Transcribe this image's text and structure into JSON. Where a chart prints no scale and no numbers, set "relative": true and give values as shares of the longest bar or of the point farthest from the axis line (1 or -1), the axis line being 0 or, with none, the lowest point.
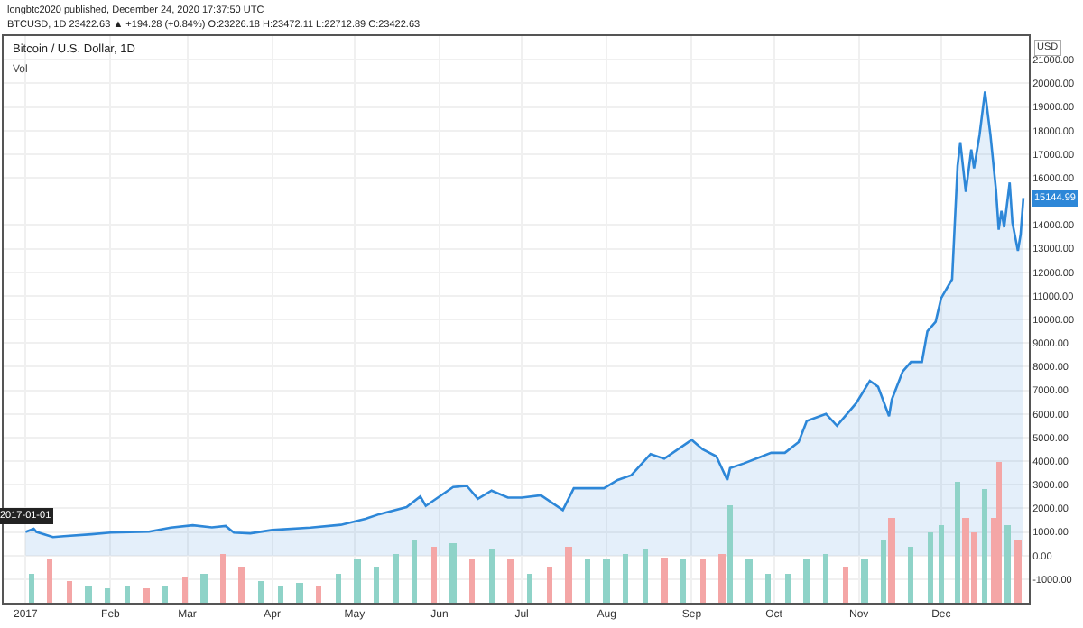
{
  "chart_data": [
    {
      "type": "area",
      "title": "Bitcoin / U.S. Dollar, 1D",
      "ylabel": "USD",
      "annotations": [
        "longbtc2020 published, December 24, 2020 17:37:50 UTC",
        "BTCUSD, 1D 23422.63 ▲ +194.28 (+0.84%) O:23226.18 H:23472.11 L:22712.89 C:23422.63",
        {
          "text": "15144.99",
          "x": "2017-12-31",
          "y": 15144.99
        },
        {
          "text": "2017-01-01",
          "x": "2017-01-01",
          "y": 1000
        }
      ],
      "series": [
        {
          "color": "#2d87d8",
          "x": [
            "2017-01-01",
            "2017-01-04",
            "2017-01-05",
            "2017-01-11",
            "2017-01-15",
            "2017-01-25",
            "2017-02-01",
            "2017-02-15",
            "2017-02-23",
            "2017-03-03",
            "2017-03-10",
            "2017-03-15",
            "2017-03-18",
            "2017-03-24",
            "2017-04-01",
            "2017-04-15",
            "2017-04-26",
            "2017-05-05",
            "2017-05-10",
            "2017-05-20",
            "2017-05-25",
            "2017-05-27",
            "2017-06-06",
            "2017-06-11",
            "2017-06-15",
            "2017-06-20",
            "2017-06-26",
            "2017-07-01",
            "2017-07-08",
            "2017-07-16",
            "2017-07-20",
            "2017-07-31",
            "2017-08-05",
            "2017-08-10",
            "2017-08-17",
            "2017-08-22",
            "2017-09-01",
            "2017-09-05",
            "2017-09-10",
            "2017-09-14",
            "2017-09-15",
            "2017-09-20",
            "2017-09-30",
            "2017-10-05",
            "2017-10-10",
            "2017-10-13",
            "2017-10-20",
            "2017-10-24",
            "2017-10-31",
            "2017-11-05",
            "2017-11-08",
            "2017-11-12",
            "2017-11-13",
            "2017-11-17",
            "2017-11-20",
            "2017-11-24",
            "2017-11-26",
            "2017-11-29",
            "2017-12-01",
            "2017-12-05",
            "2017-12-07",
            "2017-12-08",
            "2017-12-10",
            "2017-12-12",
            "2017-12-13",
            "2017-12-15",
            "2017-12-17",
            "2017-12-19",
            "2017-12-21",
            "2017-12-22",
            "2017-12-23",
            "2017-12-24",
            "2017-12-26",
            "2017-12-27",
            "2017-12-29",
            "2017-12-30",
            "2017-12-31"
          ],
          "values": [
            1000,
            1130,
            1000,
            780,
            820,
            900,
            970,
            1010,
            1180,
            1280,
            1190,
            1250,
            970,
            940,
            1080,
            1180,
            1300,
            1550,
            1750,
            2050,
            2500,
            2100,
            2900,
            2950,
            2400,
            2750,
            2450,
            2450,
            2550,
            1920,
            2850,
            2850,
            3200,
            3400,
            4300,
            4100,
            4900,
            4500,
            4200,
            3200,
            3700,
            3900,
            4350,
            4350,
            4800,
            5700,
            6000,
            5500,
            6450,
            7400,
            7150,
            5900,
            6600,
            7800,
            8200,
            8200,
            9500,
            9900,
            10900,
            11700,
            16500,
            17500,
            15400,
            17200,
            16400,
            17800,
            19650,
            17800,
            15500,
            13800,
            14600,
            13900,
            15800,
            14100,
            12900,
            13600,
            15144.99
          ]
        }
      ],
      "xlim": [
        "2016-12-24",
        "2018-01-02"
      ],
      "xticks": [
        {
          "value": "2017-01-01",
          "label": "2017"
        },
        {
          "value": "2017-02-01",
          "label": "Feb"
        },
        {
          "value": "2017-03-01",
          "label": "Mar"
        },
        {
          "value": "2017-04-01",
          "label": "Apr"
        },
        {
          "value": "2017-05-01",
          "label": "May"
        },
        {
          "value": "2017-06-01",
          "label": "Jun"
        },
        {
          "value": "2017-07-01",
          "label": "Jul"
        },
        {
          "value": "2017-08-01",
          "label": "Aug"
        },
        {
          "value": "2017-09-01",
          "label": "Sep"
        },
        {
          "value": "2017-10-01",
          "label": "Oct"
        },
        {
          "value": "2017-11-01",
          "label": "Nov"
        },
        {
          "value": "2017-12-01",
          "label": "Dec"
        }
      ],
      "ylim": [
        -2000,
        22000
      ],
      "yticks": [
        {
          "value": -1000,
          "label": "-1000.00"
        },
        {
          "value": 0,
          "label": "0.00"
        },
        {
          "value": 1000,
          "label": "1000.00"
        },
        {
          "value": 2000,
          "label": "2000.00"
        },
        {
          "value": 3000,
          "label": "3000.00"
        },
        {
          "value": 4000,
          "label": "4000.00"
        },
        {
          "value": 5000,
          "label": "5000.00"
        },
        {
          "value": 6000,
          "label": "6000.00"
        },
        {
          "value": 7000,
          "label": "7000.00"
        },
        {
          "value": 8000,
          "label": "8000.00"
        },
        {
          "value": 9000,
          "label": "9000.00"
        },
        {
          "value": 10000,
          "label": "10000.00"
        },
        {
          "value": 11000,
          "label": "11000.00"
        },
        {
          "value": 12000,
          "label": "12000.00"
        },
        {
          "value": 13000,
          "label": "13000.00"
        },
        {
          "value": 14000,
          "label": "14000.00"
        },
        {
          "value": 16000,
          "label": "16000.00"
        },
        {
          "value": 17000,
          "label": "17000.00"
        },
        {
          "value": 18000,
          "label": "18000.00"
        },
        {
          "value": 19000,
          "label": "19000.00"
        },
        {
          "value": 20000,
          "label": "20000.00"
        },
        {
          "value": 21000,
          "label": "21000.00"
        }
      ],
      "grid": true,
      "marker": "none",
      "line_style": "solid"
    },
    {
      "type": "bar",
      "title": "Vol",
      "relative": true,
      "x": [
        "2017-01-03",
        "2017-01-10",
        "2017-01-17",
        "2017-01-24",
        "2017-01-31",
        "2017-02-07",
        "2017-02-14",
        "2017-02-21",
        "2017-02-28",
        "2017-03-07",
        "2017-03-14",
        "2017-03-21",
        "2017-03-28",
        "2017-04-04",
        "2017-04-11",
        "2017-04-18",
        "2017-04-25",
        "2017-05-02",
        "2017-05-09",
        "2017-05-16",
        "2017-05-23",
        "2017-05-30",
        "2017-06-06",
        "2017-06-13",
        "2017-06-20",
        "2017-06-27",
        "2017-07-04",
        "2017-07-11",
        "2017-07-18",
        "2017-07-25",
        "2017-08-01",
        "2017-08-08",
        "2017-08-15",
        "2017-08-22",
        "2017-08-29",
        "2017-09-05",
        "2017-09-12",
        "2017-09-15",
        "2017-09-22",
        "2017-09-29",
        "2017-10-06",
        "2017-10-13",
        "2017-10-20",
        "2017-10-27",
        "2017-11-03",
        "2017-11-10",
        "2017-11-13",
        "2017-11-20",
        "2017-11-27",
        "2017-12-01",
        "2017-12-07",
        "2017-12-10",
        "2017-12-13",
        "2017-12-17",
        "2017-12-20",
        "2017-12-22",
        "2017-12-25",
        "2017-12-29"
      ],
      "values": [
        0.2,
        0.3,
        0.15,
        0.12,
        0.1,
        0.12,
        0.1,
        0.12,
        0.18,
        0.2,
        0.35,
        0.25,
        0.15,
        0.12,
        0.14,
        0.12,
        0.2,
        0.3,
        0.25,
        0.35,
        0.45,
        0.4,
        0.42,
        0.3,
        0.38,
        0.3,
        0.2,
        0.25,
        0.4,
        0.3,
        0.3,
        0.35,
        0.38,
        0.32,
        0.3,
        0.3,
        0.35,
        0.69,
        0.3,
        0.2,
        0.2,
        0.3,
        0.35,
        0.25,
        0.3,
        0.45,
        0.6,
        0.4,
        0.5,
        0.55,
        0.85,
        0.6,
        0.5,
        0.8,
        0.6,
        1.0,
        0.55,
        0.45
      ],
      "colors": [
        "#8fd3c8",
        "#f4a6a6",
        "#f4a6a6",
        "#8fd3c8",
        "#8fd3c8",
        "#8fd3c8",
        "#f4a6a6",
        "#8fd3c8",
        "#f4a6a6",
        "#8fd3c8",
        "#f4a6a6",
        "#f4a6a6",
        "#8fd3c8",
        "#8fd3c8",
        "#8fd3c8",
        "#f4a6a6",
        "#8fd3c8",
        "#8fd3c8",
        "#8fd3c8",
        "#8fd3c8",
        "#8fd3c8",
        "#f4a6a6",
        "#8fd3c8",
        "#f4a6a6",
        "#8fd3c8",
        "#f4a6a6",
        "#8fd3c8",
        "#f4a6a6",
        "#f4a6a6",
        "#8fd3c8",
        "#8fd3c8",
        "#8fd3c8",
        "#8fd3c8",
        "#f4a6a6",
        "#8fd3c8",
        "#f4a6a6",
        "#f4a6a6",
        "#8fd3c8",
        "#8fd3c8",
        "#8fd3c8",
        "#8fd3c8",
        "#8fd3c8",
        "#8fd3c8",
        "#f4a6a6",
        "#8fd3c8",
        "#8fd3c8",
        "#f4a6a6",
        "#8fd3c8",
        "#8fd3c8",
        "#8fd3c8",
        "#8fd3c8",
        "#f4a6a6",
        "#f4a6a6",
        "#8fd3c8",
        "#f4a6a6",
        "#f4a6a6",
        "#8fd3c8",
        "#f4a6a6"
      ],
      "xlim": [
        "2016-12-24",
        "2018-01-02"
      ]
    }
  ]
}
